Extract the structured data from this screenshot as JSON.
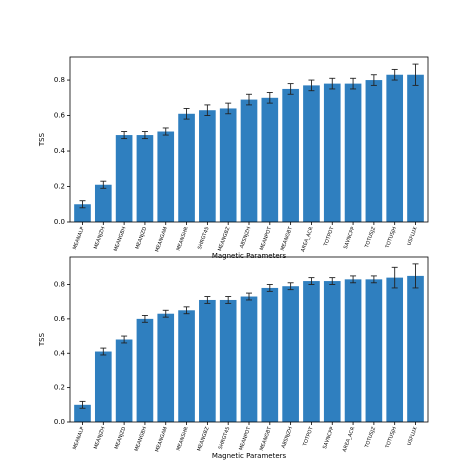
{
  "chart_data": [
    {
      "type": "bar",
      "x_label": "Magnetic Parameters",
      "y_label": "TSS",
      "color": "#2f7fbf",
      "categories": [
        "MEANALP",
        "MEANJZH",
        "MEANGBH",
        "MEANJZD",
        "MEANGAM",
        "MEANSHR",
        "SHRGT45",
        "MEANGBZ",
        "ABSNJZH",
        "MEANPOT",
        "MEANGBT",
        "AREA_ACR",
        "TOTPOT",
        "SAVNCPP",
        "TOTUSJZ",
        "TOTUSJH",
        "USFLUX"
      ],
      "values": [
        0.1,
        0.21,
        0.49,
        0.49,
        0.51,
        0.61,
        0.63,
        0.64,
        0.69,
        0.7,
        0.75,
        0.77,
        0.78,
        0.78,
        0.8,
        0.83,
        0.83
      ],
      "errors": [
        0.02,
        0.02,
        0.02,
        0.02,
        0.02,
        0.03,
        0.03,
        0.03,
        0.03,
        0.03,
        0.03,
        0.03,
        0.03,
        0.03,
        0.03,
        0.03,
        0.06
      ],
      "ylim": [
        0,
        0.93
      ],
      "yticks": [
        {
          "value": 0,
          "label": "0.0"
        },
        0.2,
        0.4,
        0.6,
        0.8
      ]
    },
    {
      "type": "bar",
      "x_label": "Magnetic Parameters",
      "y_label": "TSS",
      "color": "#2f7fbf",
      "categories": [
        "MEANALP",
        "MEANJZH",
        "MEANJZD",
        "MEANGBH",
        "MEANGAM",
        "MEANSHR",
        "MEANGBZ",
        "SHRGT45",
        "MEANPOT",
        "MEANGBT",
        "ABSNJZH",
        "TOTPOT",
        "SAVNCPP",
        "AREA_ACR",
        "TOTUSJZ",
        "TOTUSJH",
        "USFLUX"
      ],
      "values": [
        0.1,
        0.41,
        0.48,
        0.6,
        0.63,
        0.65,
        0.71,
        0.71,
        0.73,
        0.78,
        0.79,
        0.82,
        0.82,
        0.83,
        0.83,
        0.84,
        0.85
      ],
      "errors": [
        0.02,
        0.02,
        0.02,
        0.02,
        0.02,
        0.02,
        0.02,
        0.02,
        0.02,
        0.02,
        0.02,
        0.02,
        0.02,
        0.02,
        0.02,
        0.06,
        0.07
      ],
      "ylim": [
        0,
        0.96
      ],
      "yticks": [
        {
          "value": 0,
          "label": "0.0"
        },
        0.2,
        0.4,
        0.6,
        0.8
      ]
    }
  ]
}
